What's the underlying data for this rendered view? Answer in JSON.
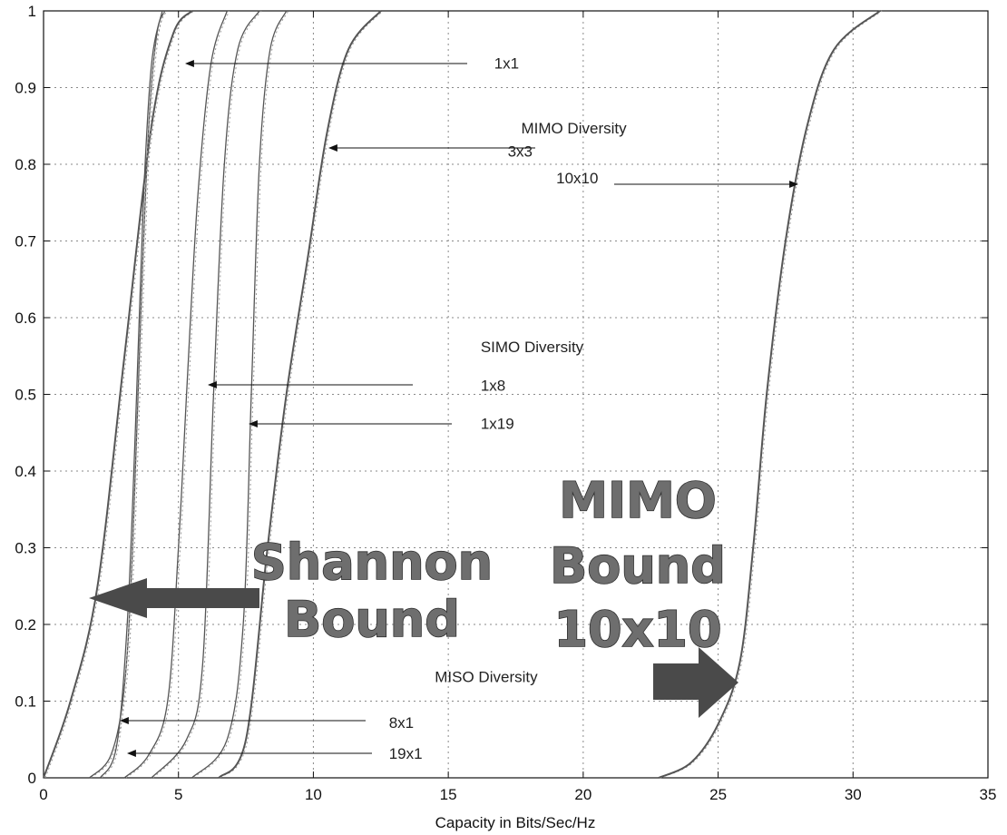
{
  "chart_data": {
    "type": "line",
    "title": "",
    "xlabel": "Capacity in Bits/Sec/Hz",
    "ylabel": "",
    "xlim": [
      0,
      35
    ],
    "ylim": [
      0,
      1
    ],
    "grid": true,
    "x_ticks": [
      "0",
      "5",
      "10",
      "15",
      "20",
      "25",
      "30",
      "35"
    ],
    "y_ticks": [
      "0",
      "0.1",
      "0.2",
      "0.3",
      "0.4",
      "0.5",
      "0.6",
      "0.7",
      "0.8",
      "0.9",
      "1"
    ],
    "series": [
      {
        "values": [
          [
            0,
            0
          ],
          [
            1,
            0.1
          ],
          [
            2,
            0.25
          ],
          [
            3,
            0.55
          ],
          [
            4,
            0.85
          ],
          [
            4.8,
            0.97
          ],
          [
            5.5,
            1
          ]
        ]
      },
      {
        "values": [
          [
            1.7,
            0
          ],
          [
            2.5,
            0.03
          ],
          [
            3,
            0.12
          ],
          [
            3.3,
            0.3
          ],
          [
            3.6,
            0.6
          ],
          [
            3.9,
            0.85
          ],
          [
            4.2,
            0.97
          ],
          [
            4.5,
            1
          ]
        ]
      },
      {
        "values": [
          [
            2.1,
            0
          ],
          [
            2.7,
            0.04
          ],
          [
            3.1,
            0.2
          ],
          [
            3.4,
            0.45
          ],
          [
            3.7,
            0.75
          ],
          [
            4,
            0.93
          ],
          [
            4.4,
            1
          ]
        ]
      },
      {
        "values": [
          [
            3,
            0
          ],
          [
            3.9,
            0.03
          ],
          [
            4.6,
            0.1
          ],
          [
            5,
            0.3
          ],
          [
            5.3,
            0.5
          ],
          [
            5.7,
            0.75
          ],
          [
            6.2,
            0.93
          ],
          [
            6.8,
            1
          ]
        ]
      },
      {
        "values": [
          [
            4,
            0
          ],
          [
            5.3,
            0.05
          ],
          [
            5.9,
            0.15
          ],
          [
            6.3,
            0.5
          ],
          [
            6.7,
            0.8
          ],
          [
            7.2,
            0.95
          ],
          [
            8,
            1
          ]
        ]
      },
      {
        "values": [
          [
            5.5,
            0
          ],
          [
            6.8,
            0.05
          ],
          [
            7.4,
            0.2
          ],
          [
            7.7,
            0.5
          ],
          [
            8,
            0.8
          ],
          [
            8.4,
            0.95
          ],
          [
            9,
            1
          ]
        ]
      },
      {
        "values": [
          [
            6.5,
            0
          ],
          [
            7.5,
            0.05
          ],
          [
            8.3,
            0.3
          ],
          [
            9,
            0.5
          ],
          [
            9.8,
            0.68
          ],
          [
            10.5,
            0.84
          ],
          [
            11.3,
            0.95
          ],
          [
            12.5,
            1
          ]
        ]
      },
      {
        "values": [
          [
            22.8,
            0
          ],
          [
            24,
            0.02
          ],
          [
            25,
            0.07
          ],
          [
            25.8,
            0.15
          ],
          [
            26.3,
            0.3
          ],
          [
            26.8,
            0.5
          ],
          [
            27.5,
            0.7
          ],
          [
            28.3,
            0.85
          ],
          [
            29.3,
            0.95
          ],
          [
            31,
            1
          ]
        ]
      }
    ],
    "annotations": [
      {
        "text": "1x1",
        "x": 16.7,
        "y": 0.925
      },
      {
        "text": "MIMO Diversity",
        "x": 17.7,
        "y": 0.84
      },
      {
        "text": "3x3",
        "x": 17.2,
        "y": 0.81
      },
      {
        "text": "10x10",
        "x": 19,
        "y": 0.775
      },
      {
        "text": "SIMO Diversity",
        "x": 16.2,
        "y": 0.555
      },
      {
        "text": "1x8",
        "x": 16.2,
        "y": 0.505
      },
      {
        "text": "1x19",
        "x": 16.2,
        "y": 0.455
      },
      {
        "text": "MISO Diversity",
        "x": 14.5,
        "y": 0.125
      },
      {
        "text": "8x1",
        "x": 12.8,
        "y": 0.065
      },
      {
        "text": "19x1",
        "x": 12.8,
        "y": 0.025
      }
    ],
    "callouts": [
      {
        "lines": [
          "Shannon",
          "Bound"
        ]
      },
      {
        "lines": [
          "MIMO",
          "Bound",
          "10x10"
        ]
      }
    ]
  }
}
